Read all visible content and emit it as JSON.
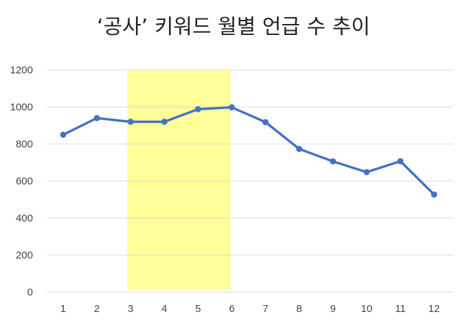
{
  "chart_data": {
    "type": "line",
    "title": "‘공사’ 키워드 월별 언급 수 추이",
    "x": [
      1,
      2,
      3,
      4,
      5,
      6,
      7,
      8,
      9,
      10,
      11,
      12
    ],
    "series": [
      {
        "values": [
          850,
          940,
          920,
          920,
          988,
          998,
          918,
          773,
          706,
          648,
          707,
          527
        ]
      }
    ],
    "ylim": [
      0,
      1200
    ],
    "yticks": [
      0,
      200,
      400,
      600,
      800,
      1000,
      1200
    ],
    "highlight_range": [
      3,
      6
    ],
    "grid": true,
    "colors": {
      "line": "#4472c4",
      "highlight": "#ffff99",
      "grid": "#d9d9d9"
    }
  }
}
